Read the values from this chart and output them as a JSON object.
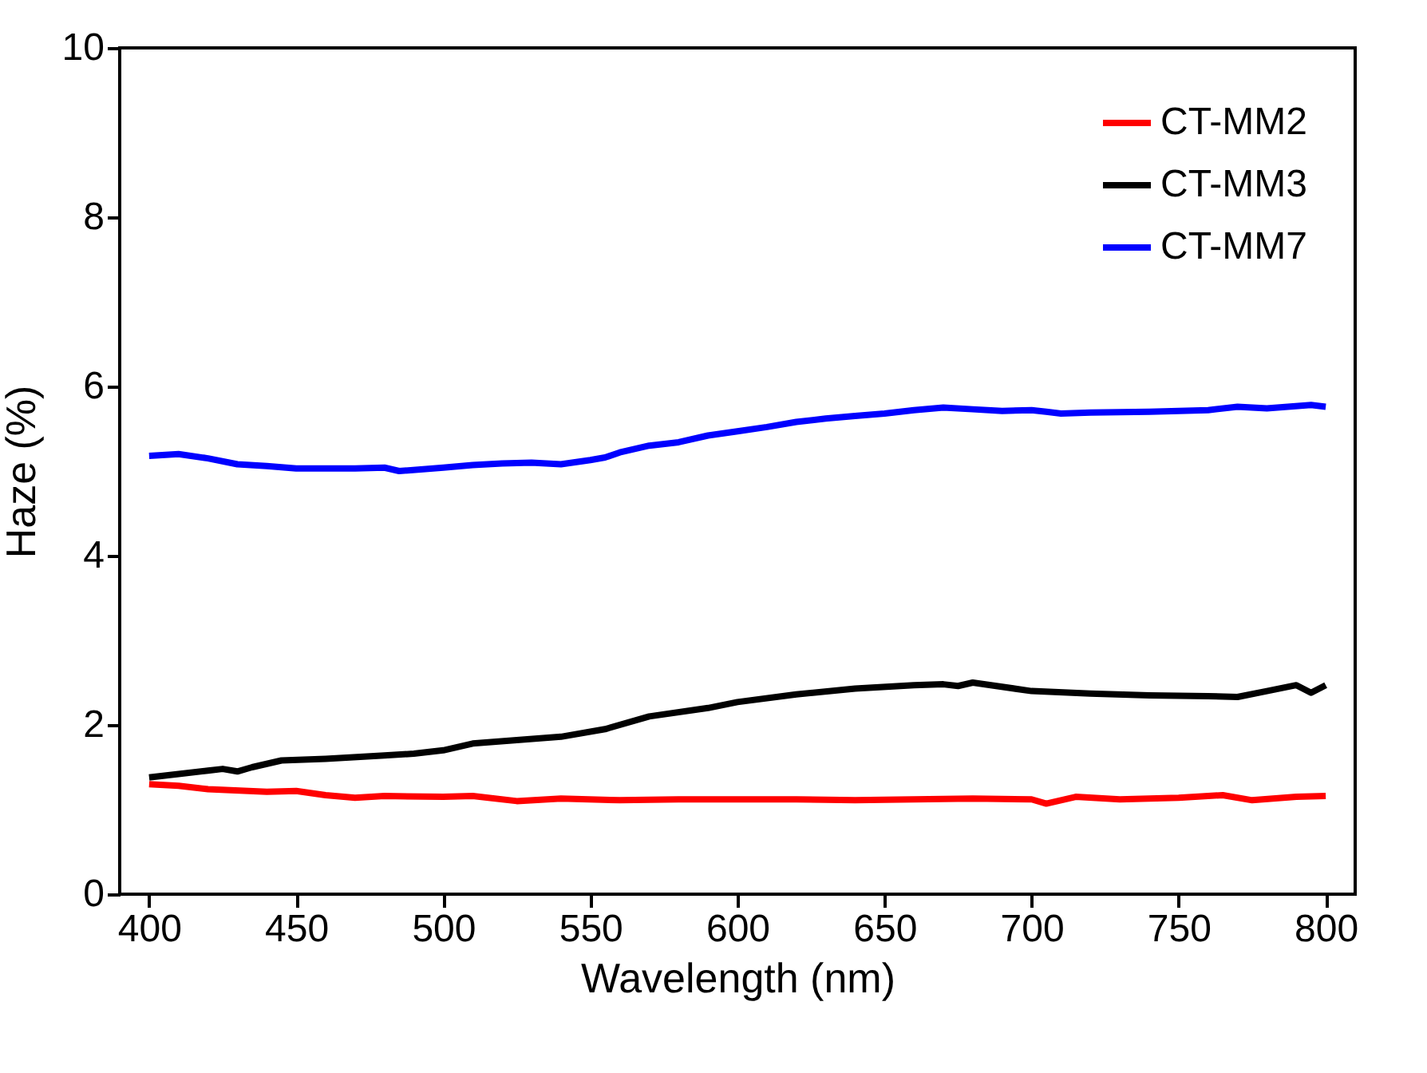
{
  "chart_data": {
    "type": "line",
    "xlabel": "Wavelength (nm)",
    "ylabel": "Haze (%)",
    "xlim": [
      390,
      810
    ],
    "ylim": [
      0,
      10
    ],
    "xticks": [
      400,
      450,
      500,
      550,
      600,
      650,
      700,
      750,
      800
    ],
    "yticks": [
      0,
      2,
      4,
      6,
      8,
      10
    ],
    "grid": false,
    "legend": "top right",
    "line_style": "solid",
    "marker": "none",
    "series": [
      {
        "name": "CT-MM2",
        "color": "#ff0000",
        "x": [
          400,
          410,
          420,
          440,
          450,
          460,
          470,
          480,
          500,
          510,
          525,
          540,
          560,
          580,
          600,
          620,
          640,
          660,
          680,
          700,
          705,
          715,
          730,
          750,
          765,
          775,
          790,
          800
        ],
        "values": [
          1.3,
          1.28,
          1.24,
          1.21,
          1.22,
          1.17,
          1.14,
          1.16,
          1.15,
          1.16,
          1.1,
          1.13,
          1.11,
          1.12,
          1.12,
          1.12,
          1.11,
          1.12,
          1.13,
          1.12,
          1.07,
          1.15,
          1.12,
          1.14,
          1.17,
          1.11,
          1.15,
          1.16
        ]
      },
      {
        "name": "CT-MM3",
        "color": "#000000",
        "x": [
          400,
          410,
          420,
          425,
          430,
          435,
          445,
          460,
          480,
          490,
          500,
          510,
          525,
          540,
          555,
          570,
          590,
          600,
          620,
          640,
          660,
          670,
          675,
          680,
          700,
          720,
          740,
          760,
          770,
          780,
          790,
          795,
          800
        ],
        "values": [
          1.38,
          1.42,
          1.46,
          1.48,
          1.45,
          1.5,
          1.58,
          1.6,
          1.64,
          1.66,
          1.7,
          1.78,
          1.82,
          1.86,
          1.95,
          2.1,
          2.2,
          2.27,
          2.36,
          2.43,
          2.47,
          2.48,
          2.46,
          2.5,
          2.4,
          2.37,
          2.35,
          2.34,
          2.33,
          2.4,
          2.47,
          2.38,
          2.47
        ]
      },
      {
        "name": "CT-MM7",
        "color": "#0000ff",
        "x": [
          400,
          410,
          420,
          430,
          440,
          450,
          460,
          470,
          480,
          485,
          500,
          510,
          520,
          530,
          540,
          550,
          555,
          560,
          570,
          580,
          590,
          600,
          610,
          620,
          630,
          640,
          650,
          660,
          670,
          680,
          690,
          700,
          705,
          710,
          720,
          740,
          760,
          770,
          780,
          795,
          800
        ],
        "values": [
          5.18,
          5.2,
          5.15,
          5.08,
          5.06,
          5.03,
          5.03,
          5.03,
          5.04,
          5.0,
          5.04,
          5.07,
          5.09,
          5.1,
          5.08,
          5.13,
          5.16,
          5.22,
          5.3,
          5.34,
          5.42,
          5.47,
          5.52,
          5.58,
          5.62,
          5.65,
          5.68,
          5.72,
          5.75,
          5.73,
          5.71,
          5.72,
          5.7,
          5.68,
          5.69,
          5.7,
          5.72,
          5.76,
          5.74,
          5.78,
          5.76
        ]
      }
    ]
  }
}
